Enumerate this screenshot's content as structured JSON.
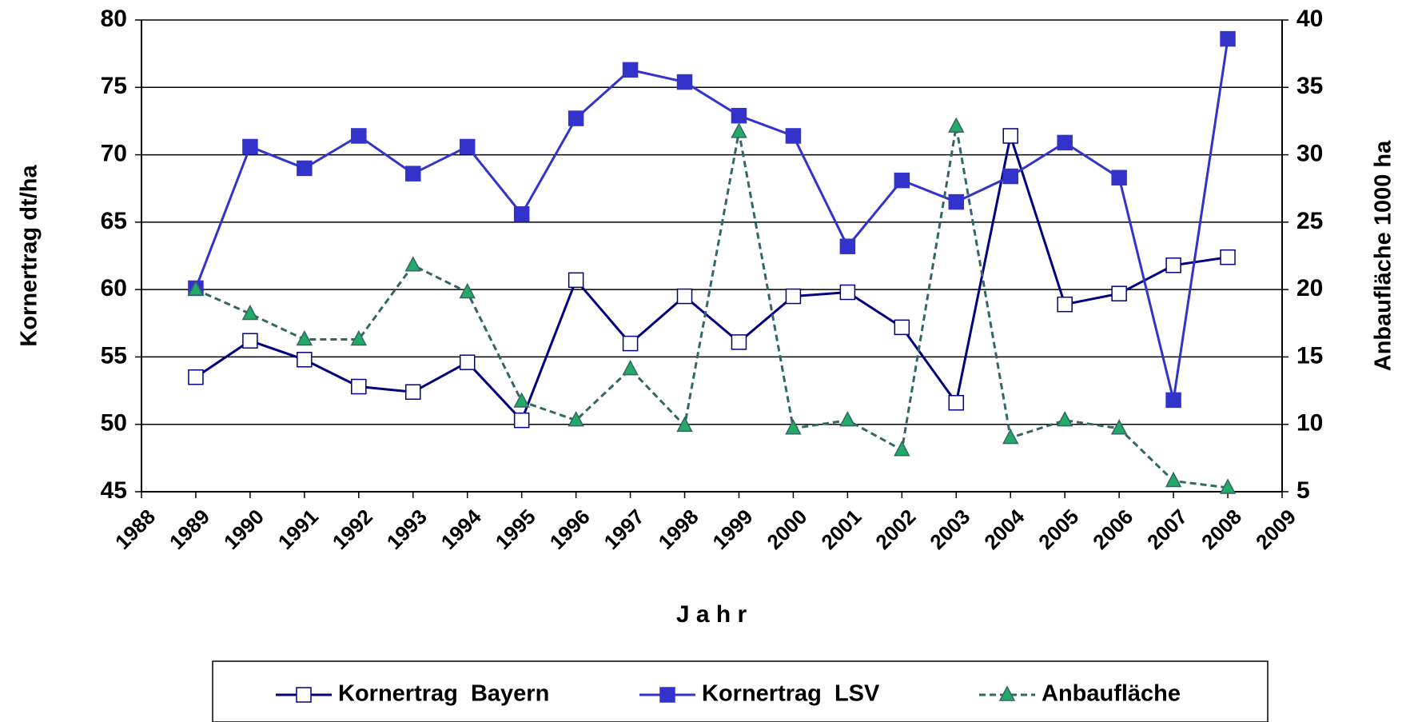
{
  "chart_data": {
    "type": "line",
    "x_label": "J a h r",
    "y_label": "Kornertrag  dt/ha",
    "y2_label": "Anbaufläche  1000 ha",
    "x": [
      1989,
      1990,
      1991,
      1992,
      1993,
      1994,
      1995,
      1996,
      1997,
      1998,
      1999,
      2000,
      2001,
      2002,
      2003,
      2004,
      2005,
      2006,
      2007,
      2008
    ],
    "series": [
      {
        "name": "Kornertrag  Bayern",
        "color": "#000080",
        "marker": "square-open",
        "dash": false,
        "values": [
          53.5,
          56.2,
          54.8,
          52.8,
          52.4,
          54.6,
          50.3,
          60.7,
          56.0,
          59.5,
          56.1,
          59.5,
          59.8,
          57.2,
          51.6,
          71.4,
          58.9,
          59.7,
          61.8,
          62.4
        ]
      },
      {
        "name": "Kornertrag  LSV",
        "color": "#3333cc",
        "marker": "square-filled",
        "dash": false,
        "values": [
          60.1,
          70.6,
          69.0,
          71.4,
          68.6,
          70.6,
          65.6,
          72.7,
          76.3,
          75.4,
          72.9,
          71.4,
          63.2,
          68.1,
          66.5,
          68.4,
          70.9,
          68.3,
          51.8,
          78.6
        ]
      },
      {
        "name": "Anbaufläche",
        "color": "#336666",
        "marker": "triangle",
        "marker_color": "#22aa66",
        "dash": true,
        "axis": "y2",
        "values": [
          20.0,
          18.2,
          16.3,
          16.3,
          21.8,
          19.8,
          11.7,
          10.3,
          14.1,
          9.9,
          31.7,
          9.7,
          10.3,
          8.1,
          32.1,
          9.0,
          10.3,
          9.7,
          5.8,
          5.3
        ]
      }
    ],
    "xlim": [
      1988,
      2009
    ],
    "xticks": [
      1988,
      1989,
      1990,
      1991,
      1992,
      1993,
      1994,
      1995,
      1996,
      1997,
      1998,
      1999,
      2000,
      2001,
      2002,
      2003,
      2004,
      2005,
      2006,
      2007,
      2008,
      2009
    ],
    "ylim": [
      45,
      80
    ],
    "yticks": [
      45,
      50,
      55,
      60,
      65,
      70,
      75,
      80
    ],
    "y2lim": [
      5,
      40
    ],
    "y2ticks": [
      5,
      10,
      15,
      20,
      25,
      30,
      35,
      40
    ],
    "grid": true,
    "legend": "bottom"
  }
}
